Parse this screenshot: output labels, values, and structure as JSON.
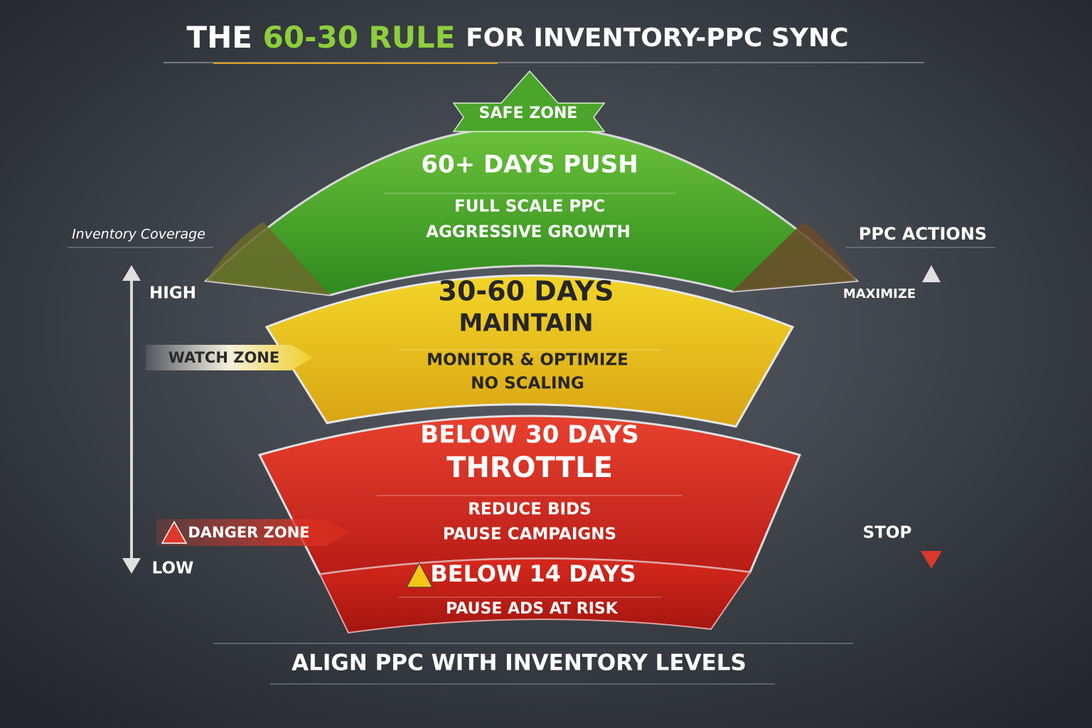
{
  "title": {
    "prefix": "THE",
    "highlight": "60-30 RULE",
    "suffix": "FOR INVENTORY-PPC SYNC"
  },
  "left_axis": {
    "label": "Inventory Coverage",
    "high": "HIGH",
    "low": "LOW"
  },
  "right_axis": {
    "label": "PPC ACTIONS",
    "high": "MAXIMIZE",
    "low": "STOP"
  },
  "zones": [
    {
      "badge": "SAFE ZONE",
      "heading": [
        "60+ DAYS PUSH"
      ],
      "lines": [
        "FULL SCALE PPC",
        "AGGRESSIVE GROWTH"
      ]
    },
    {
      "badge": "WATCH ZONE",
      "heading": [
        "30-60 DAYS",
        "MAINTAIN"
      ],
      "lines": [
        "MONITOR & OPTIMIZE",
        "NO SCALING"
      ]
    },
    {
      "badge": "DANGER ZONE",
      "heading": [
        "BELOW 30 DAYS",
        "THROTTLE"
      ],
      "lines": [
        "REDUCE BIDS",
        "PAUSE CAMPAIGNS"
      ]
    },
    {
      "heading": [
        "BELOW 14 DAYS"
      ],
      "lines": [
        "PAUSE ADS AT RISK"
      ]
    }
  ],
  "footer": "ALIGN PPC WITH INVENTORY LEVELS"
}
